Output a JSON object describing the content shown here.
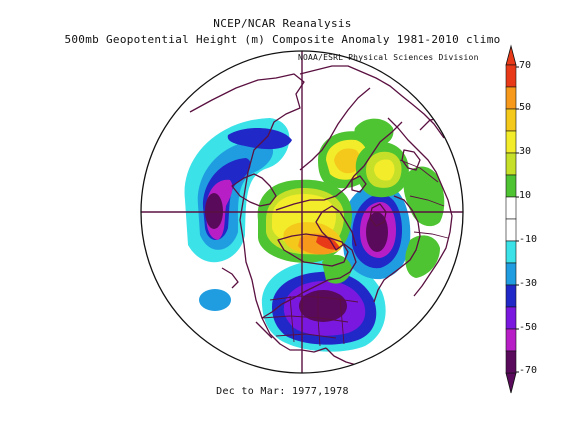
{
  "header": {
    "line1": "NCEP/NCAR Reanalysis",
    "line2": "500mb Geopotential Height (m) Composite Anomaly 1981-2010 climo",
    "credit": "NOAA/ESRL Physical Sciences Division"
  },
  "footer": {
    "period": "Dec to Mar: 1977,1978"
  },
  "colorbar": {
    "ticks": [
      "70",
      "50",
      "30",
      "10",
      "-10",
      "-30",
      "-50",
      "-70"
    ],
    "bins": [
      {
        "range": "60 to 70",
        "color": "#e83a18"
      },
      {
        "range": "50 to 60",
        "color": "#f79a1c"
      },
      {
        "range": "40 to 50",
        "color": "#f5c81c"
      },
      {
        "range": "30 to 40",
        "color": "#f2ec2a"
      },
      {
        "range": "20 to 30",
        "color": "#c6e02a"
      },
      {
        "range": "10 to 20",
        "color": "#4ec432"
      },
      {
        "range": "0 to 10",
        "color": "#ffffff"
      },
      {
        "range": "-10 to 0",
        "color": "#ffffff"
      },
      {
        "range": "-20 to -10",
        "color": "#3be2e8"
      },
      {
        "range": "-30 to -20",
        "color": "#209de0"
      },
      {
        "range": "-40 to -30",
        "color": "#2028c8"
      },
      {
        "range": "-50 to -40",
        "color": "#7a18e0"
      },
      {
        "range": "-60 to -50",
        "color": "#b81ec6"
      },
      {
        "range": "-70 to -60",
        "color": "#5a0a5a"
      }
    ]
  },
  "map": {
    "projection": "polar stereographic, north pole",
    "coastline_color": "#5a1040",
    "anomaly_features": [
      {
        "name": "north-pacific-low",
        "sign": "negative",
        "peak": -70
      },
      {
        "name": "eastern-north-america-low",
        "sign": "negative",
        "peak": -70
      },
      {
        "name": "northeast-atlantic-low",
        "sign": "negative",
        "peak": -70
      },
      {
        "name": "greenland-high",
        "sign": "positive",
        "peak": 60
      },
      {
        "name": "alaska-arctic-high",
        "sign": "positive",
        "peak": 40
      },
      {
        "name": "siberia-high",
        "sign": "positive",
        "peak": 40
      },
      {
        "name": "eurasia-high",
        "sign": "positive",
        "peak": 20
      }
    ]
  }
}
